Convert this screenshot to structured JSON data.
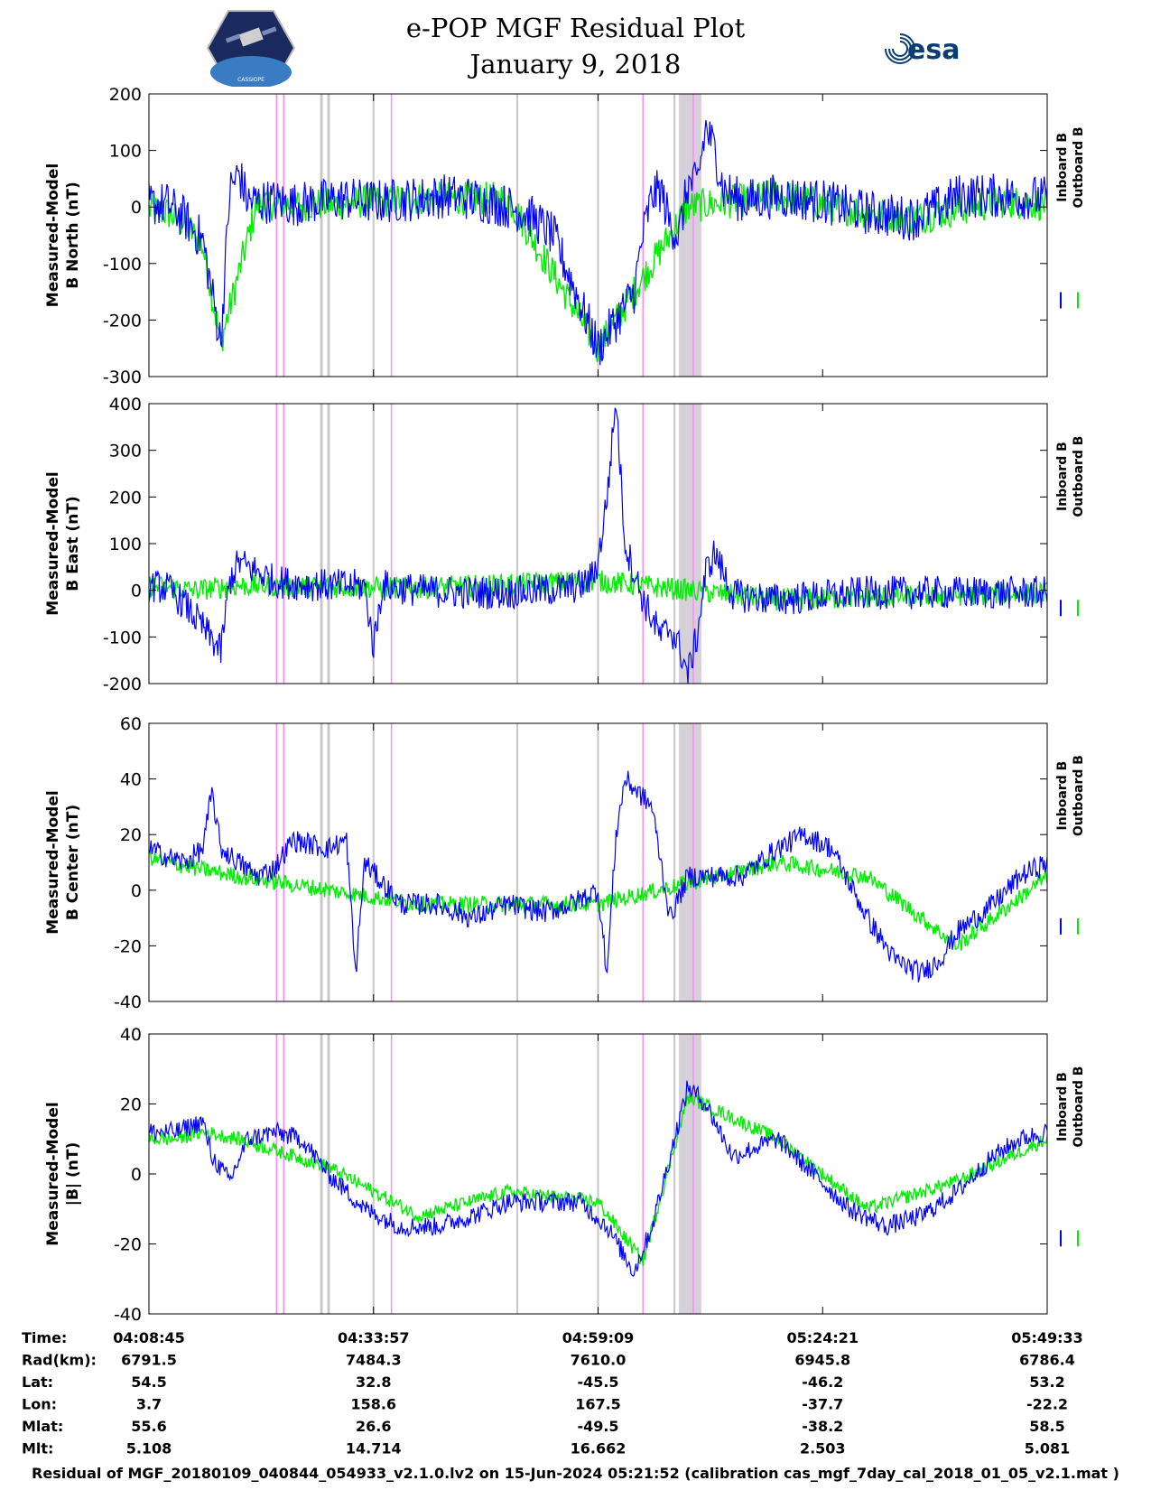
{
  "title": "e-POP MGF Residual Plot",
  "subtitle": "January 9, 2018",
  "logos": {
    "left": "CASSIOPE",
    "right": "esa"
  },
  "colors": {
    "inboard": "#0000ff",
    "outboard": "#00ee00",
    "magenta_marker": "#ff88ff",
    "gray_marker": "#c8c8c8",
    "shade": "#d6d0d8"
  },
  "chart_data": [
    {
      "type": "line",
      "ylabel_line1": "Measured-Model",
      "ylabel_line2": "B North (nT)",
      "ylim": [
        -300,
        200
      ],
      "yticks": [
        -300,
        -200,
        -100,
        0,
        100,
        200
      ],
      "legend": [
        "Inboard B",
        "Outboard B"
      ],
      "series": [
        {
          "name": "Inboard B",
          "color": "#0000ff",
          "x": [
            0,
            0.02,
            0.04,
            0.06,
            0.08,
            0.09,
            0.1,
            0.11,
            0.12,
            0.14,
            0.16,
            0.19,
            0.22,
            0.24,
            0.26,
            0.3,
            0.33,
            0.36,
            0.39,
            0.42,
            0.45,
            0.5,
            0.54,
            0.55,
            0.56,
            0.57,
            0.58,
            0.59,
            0.6,
            0.61,
            0.62,
            0.63,
            0.64,
            0.66,
            0.7,
            0.75,
            0.8,
            0.85,
            0.88,
            0.9,
            0.95,
            1.0
          ],
          "y": [
            5,
            5,
            -20,
            -60,
            -240,
            30,
            60,
            10,
            10,
            10,
            5,
            10,
            15,
            10,
            10,
            15,
            20,
            15,
            5,
            -10,
            -50,
            -250,
            -150,
            -50,
            20,
            30,
            -30,
            -50,
            40,
            40,
            140,
            100,
            30,
            10,
            20,
            10,
            -10,
            -20,
            0,
            20,
            20,
            15
          ]
        },
        {
          "name": "Outboard B",
          "color": "#00ee00",
          "x": [
            0,
            0.02,
            0.04,
            0.06,
            0.08,
            0.12,
            0.2,
            0.3,
            0.4,
            0.5,
            0.6,
            0.7,
            0.8,
            0.85,
            0.9,
            0.95,
            1.0
          ],
          "y": [
            -5,
            -10,
            -30,
            -70,
            -240,
            5,
            5,
            15,
            15,
            -250,
            0,
            20,
            -10,
            -20,
            -5,
            10,
            5
          ]
        }
      ]
    },
    {
      "type": "line",
      "ylabel_line1": "Measured-Model",
      "ylabel_line2": "B East (nT)",
      "ylim": [
        -200,
        400
      ],
      "yticks": [
        -200,
        -100,
        0,
        100,
        200,
        300,
        400
      ],
      "legend": [
        "Inboard B",
        "Outboard B"
      ],
      "series": [
        {
          "name": "Inboard B",
          "color": "#0000ff",
          "x": [
            0,
            0.02,
            0.04,
            0.06,
            0.08,
            0.09,
            0.1,
            0.12,
            0.14,
            0.16,
            0.2,
            0.24,
            0.25,
            0.26,
            0.3,
            0.35,
            0.4,
            0.44,
            0.47,
            0.48,
            0.49,
            0.5,
            0.51,
            0.52,
            0.53,
            0.55,
            0.57,
            0.58,
            0.59,
            0.6,
            0.61,
            0.62,
            0.63,
            0.65,
            0.7,
            0.8,
            0.9,
            1.0
          ],
          "y": [
            10,
            5,
            -30,
            -80,
            -130,
            20,
            60,
            40,
            20,
            15,
            10,
            10,
            -120,
            10,
            0,
            -5,
            -5,
            0,
            5,
            10,
            20,
            60,
            200,
            410,
            100,
            -20,
            -100,
            -80,
            -120,
            -180,
            -100,
            40,
            80,
            -10,
            -20,
            -5,
            -5,
            -5
          ]
        },
        {
          "name": "Outboard B",
          "color": "#00ee00",
          "x": [
            0,
            0.03,
            0.05,
            0.1,
            0.3,
            0.5,
            0.7,
            1.0
          ],
          "y": [
            10,
            5,
            0,
            10,
            5,
            20,
            -20,
            -5
          ]
        }
      ]
    },
    {
      "type": "line",
      "ylabel_line1": "Measured-Model",
      "ylabel_line2": "B Center (nT)",
      "ylim": [
        -40,
        60
      ],
      "yticks": [
        -40,
        -20,
        0,
        20,
        40,
        60
      ],
      "legend": [
        "Inboard B",
        "Outboard B"
      ],
      "series": [
        {
          "name": "Inboard B",
          "color": "#0000ff",
          "x": [
            0,
            0.02,
            0.04,
            0.06,
            0.07,
            0.08,
            0.1,
            0.12,
            0.14,
            0.16,
            0.2,
            0.22,
            0.23,
            0.24,
            0.28,
            0.32,
            0.36,
            0.4,
            0.44,
            0.47,
            0.5,
            0.51,
            0.52,
            0.53,
            0.56,
            0.58,
            0.6,
            0.62,
            0.66,
            0.7,
            0.73,
            0.76,
            0.8,
            0.83,
            0.86,
            0.88,
            0.9,
            0.94,
            0.97,
            1.0
          ],
          "y": [
            15,
            12,
            10,
            15,
            35,
            15,
            10,
            5,
            8,
            18,
            15,
            18,
            -30,
            10,
            -5,
            -5,
            -10,
            -5,
            -8,
            -5,
            0,
            -30,
            20,
            40,
            30,
            -10,
            5,
            5,
            5,
            15,
            20,
            15,
            -10,
            -25,
            -30,
            -25,
            -15,
            -5,
            5,
            10
          ]
        },
        {
          "name": "Outboard B",
          "color": "#00ee00",
          "x": [
            0,
            0.02,
            0.05,
            0.1,
            0.3,
            0.5,
            0.7,
            0.8,
            0.9,
            1.0
          ],
          "y": [
            12,
            10,
            8,
            5,
            -5,
            -5,
            10,
            5,
            -20,
            5
          ]
        }
      ]
    },
    {
      "type": "line",
      "ylabel_line1": "Measured-Model",
      "ylabel_line2": "|B| (nT)",
      "ylim": [
        -40,
        40
      ],
      "yticks": [
        -40,
        -20,
        0,
        20,
        40
      ],
      "legend": [
        "Inboard B",
        "Outboard B"
      ],
      "series": [
        {
          "name": "Inboard B",
          "color": "#0000ff",
          "x": [
            0,
            0.03,
            0.06,
            0.07,
            0.09,
            0.11,
            0.14,
            0.17,
            0.2,
            0.24,
            0.28,
            0.32,
            0.36,
            0.4,
            0.44,
            0.48,
            0.51,
            0.54,
            0.56,
            0.58,
            0.6,
            0.62,
            0.65,
            0.7,
            0.74,
            0.78,
            0.82,
            0.86,
            0.9,
            0.94,
            0.97,
            1.0
          ],
          "y": [
            12,
            12,
            15,
            5,
            -2,
            10,
            12,
            10,
            0,
            -10,
            -15,
            -15,
            -12,
            -8,
            -8,
            -8,
            -15,
            -28,
            -15,
            5,
            25,
            20,
            5,
            10,
            0,
            -10,
            -15,
            -12,
            -5,
            5,
            10,
            12
          ]
        },
        {
          "name": "Outboard B",
          "color": "#00ee00",
          "x": [
            0,
            0.03,
            0.06,
            0.1,
            0.2,
            0.3,
            0.4,
            0.5,
            0.55,
            0.6,
            0.7,
            0.8,
            0.9,
            1.0
          ],
          "y": [
            10,
            10,
            12,
            10,
            2,
            -12,
            -5,
            -8,
            -25,
            22,
            10,
            -10,
            -2,
            10
          ]
        }
      ]
    }
  ],
  "x_axis": {
    "ticks_frac": [
      0,
      0.25,
      0.5,
      0.75,
      1.0
    ],
    "row_labels": [
      "Time:",
      "Rad(km):",
      "Lat:",
      "Lon:",
      "Mlat:",
      "Mlt:"
    ],
    "rows": [
      [
        "04:08:45",
        "04:33:57",
        "04:59:09",
        "05:24:21",
        "05:49:33"
      ],
      [
        "6791.5",
        "7484.3",
        "7610.0",
        "6945.8",
        "6786.4"
      ],
      [
        "54.5",
        "32.8",
        "-45.5",
        "-46.2",
        "53.2"
      ],
      [
        "3.7",
        "158.6",
        "167.5",
        "-37.7",
        "-22.2"
      ],
      [
        "55.6",
        "26.6",
        "-49.5",
        "-38.2",
        "58.5"
      ],
      [
        "5.108",
        "14.714",
        "16.662",
        "2.503",
        "5.081"
      ]
    ]
  },
  "markers": {
    "magenta": [
      0.142,
      0.15,
      0.27,
      0.55,
      0.606
    ],
    "gray": [
      0.192,
      0.2,
      0.25,
      0.41,
      0.5,
      0.585
    ],
    "shade": [
      0.59,
      0.615
    ]
  },
  "footer": "Residual of MGF_20180109_040844_054933_v2.1.0.lv2 on 15-Jun-2024 05:21:52 (calibration cas_mgf_7day_cal_2018_01_05_v2.1.mat )"
}
